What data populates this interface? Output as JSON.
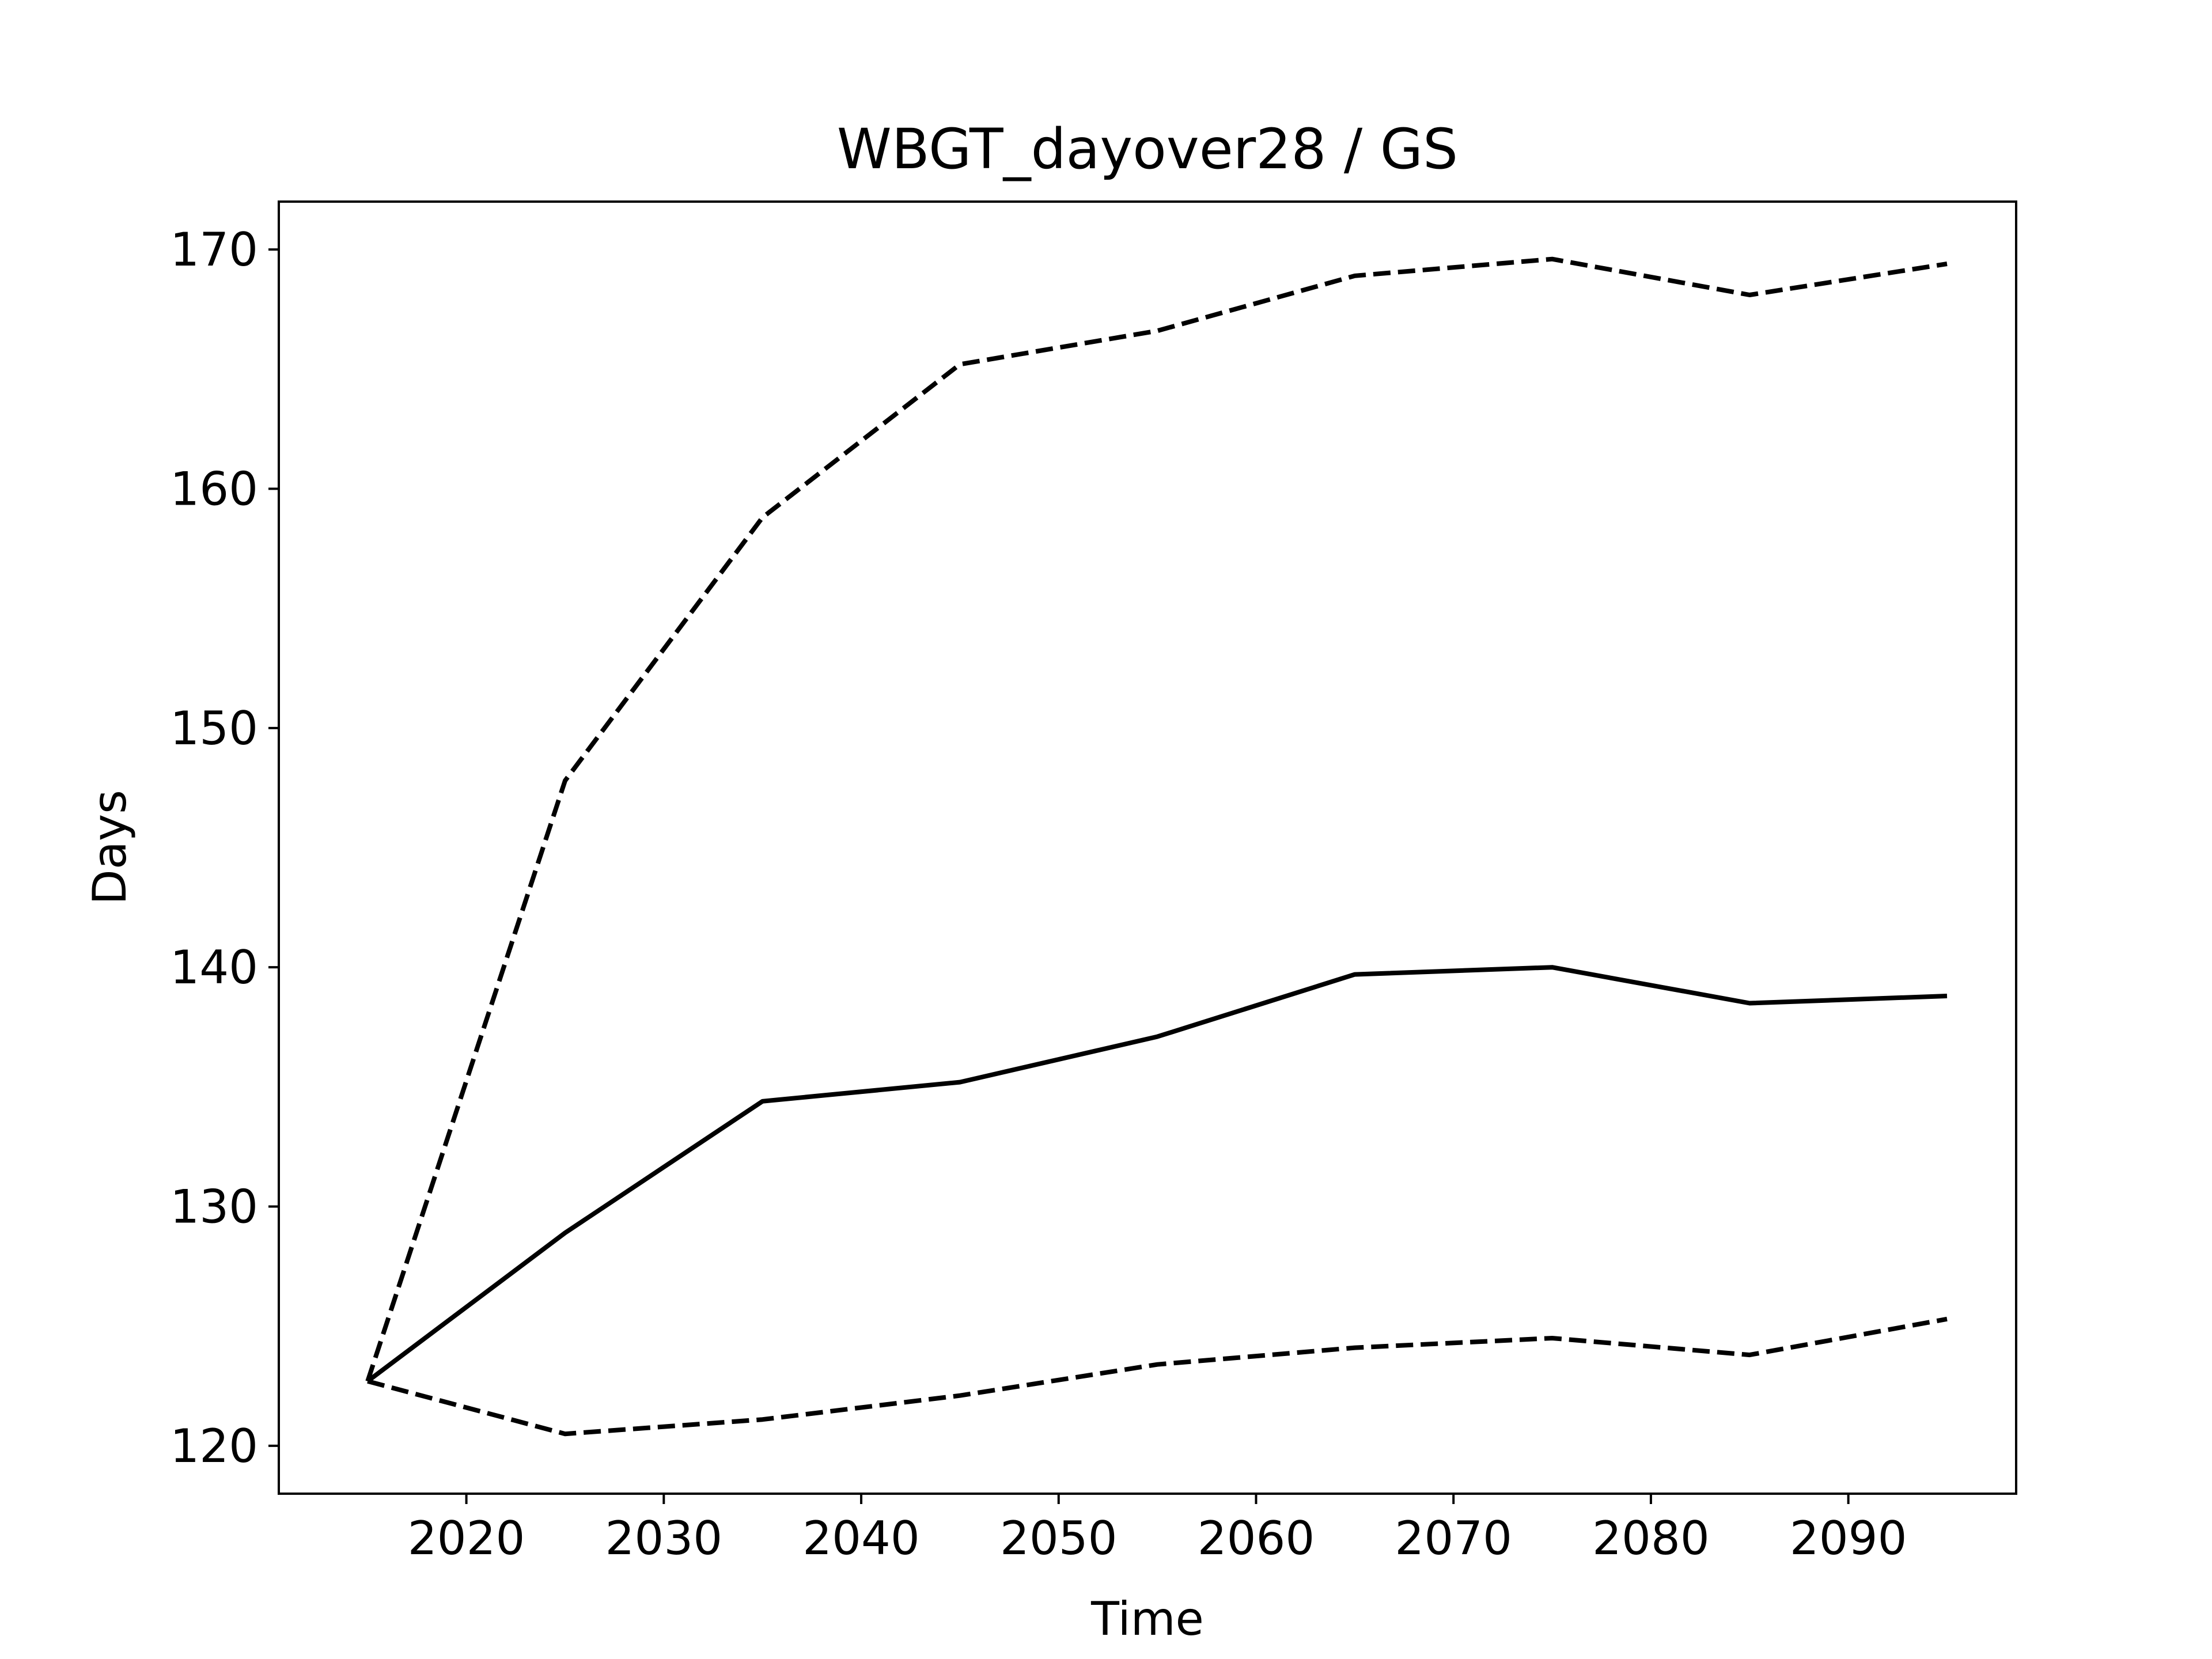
{
  "chart_data": {
    "type": "line",
    "title": "WBGT_dayover28 / GS",
    "xlabel": "Time",
    "ylabel": "Days",
    "x": [
      2015,
      2025,
      2035,
      2045,
      2055,
      2065,
      2075,
      2085,
      2095
    ],
    "xlim": [
      2010.5,
      2098.5
    ],
    "ylim": [
      118,
      172
    ],
    "xticks": [
      2020,
      2030,
      2040,
      2050,
      2060,
      2070,
      2080,
      2090
    ],
    "yticks": [
      120,
      130,
      140,
      150,
      160,
      170
    ],
    "grid": false,
    "series": [
      {
        "style": "solid",
        "color": "#000000",
        "values": [
          122.7,
          128.9,
          134.4,
          135.2,
          137.1,
          139.7,
          140.0,
          138.5,
          138.8
        ]
      },
      {
        "style": "dashed",
        "color": "#000000",
        "values": [
          122.7,
          147.8,
          158.8,
          165.2,
          166.6,
          168.9,
          169.6,
          168.1,
          169.4
        ]
      },
      {
        "style": "dashed",
        "color": "#000000",
        "values": [
          122.7,
          120.5,
          121.1,
          122.1,
          123.4,
          124.1,
          124.5,
          123.8,
          125.3
        ]
      }
    ]
  }
}
